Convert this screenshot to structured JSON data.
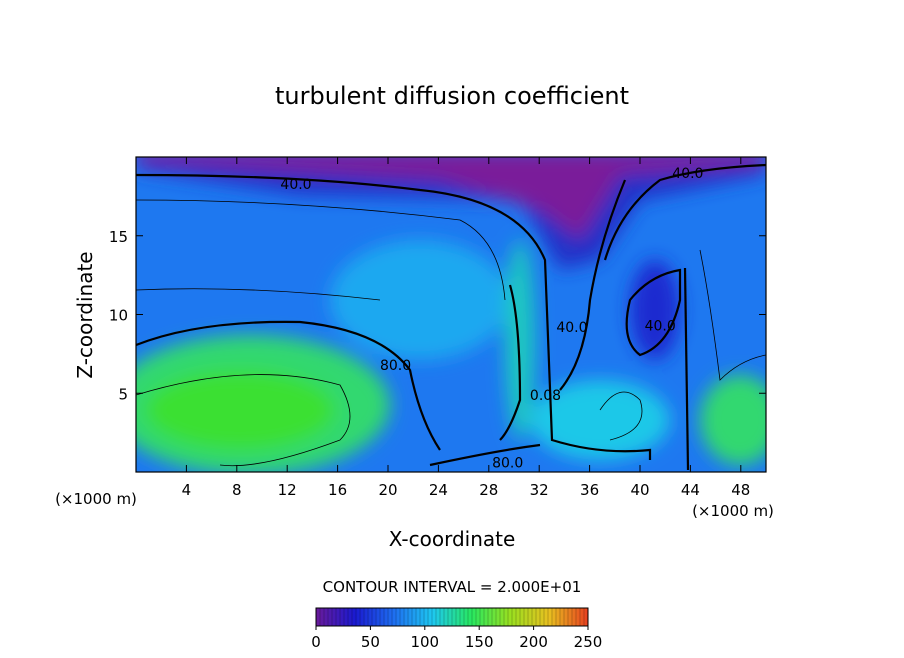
{
  "chart_data": {
    "type": "contour",
    "title": "turbulent diffusion coefficient",
    "x_label": "X-coordinate",
    "y_label": "Z-coordinate",
    "x_unit": "(×1000 m)",
    "y_unit": "(×1000 m)",
    "xlim": [
      0,
      50
    ],
    "xticks": [
      4,
      8,
      12,
      16,
      20,
      24,
      28,
      32,
      36,
      40,
      44,
      48
    ],
    "ylim": [
      0,
      20
    ],
    "yticks": [
      5,
      10,
      15
    ],
    "contour_interval_text": "CONTOUR INTERVAL = 2.000E+01",
    "contour_labels": [
      {
        "label": "40.0",
        "x": 12.7,
        "y": 18.3
      },
      {
        "label": "40.0",
        "x": 43.8,
        "y": 19.0
      },
      {
        "label": "40.0",
        "x": 34.6,
        "y": 9.2
      },
      {
        "label": "40.0",
        "x": 41.6,
        "y": 9.3
      },
      {
        "label": "80.0",
        "x": 20.6,
        "y": 6.8
      },
      {
        "label": "0.08",
        "x": 32.5,
        "y": 4.9
      },
      {
        "label": "80.0",
        "x": 29.5,
        "y": 0.6
      }
    ],
    "colorbar": {
      "lim": [
        0,
        250
      ],
      "ticks": [
        0,
        50,
        100,
        150,
        200,
        250
      ],
      "colors": [
        "#6a1a9a",
        "#1a1ad0",
        "#1e6ef0",
        "#1ec8f0",
        "#28e860",
        "#9ae020",
        "#e8c020",
        "#e84020"
      ]
    }
  }
}
